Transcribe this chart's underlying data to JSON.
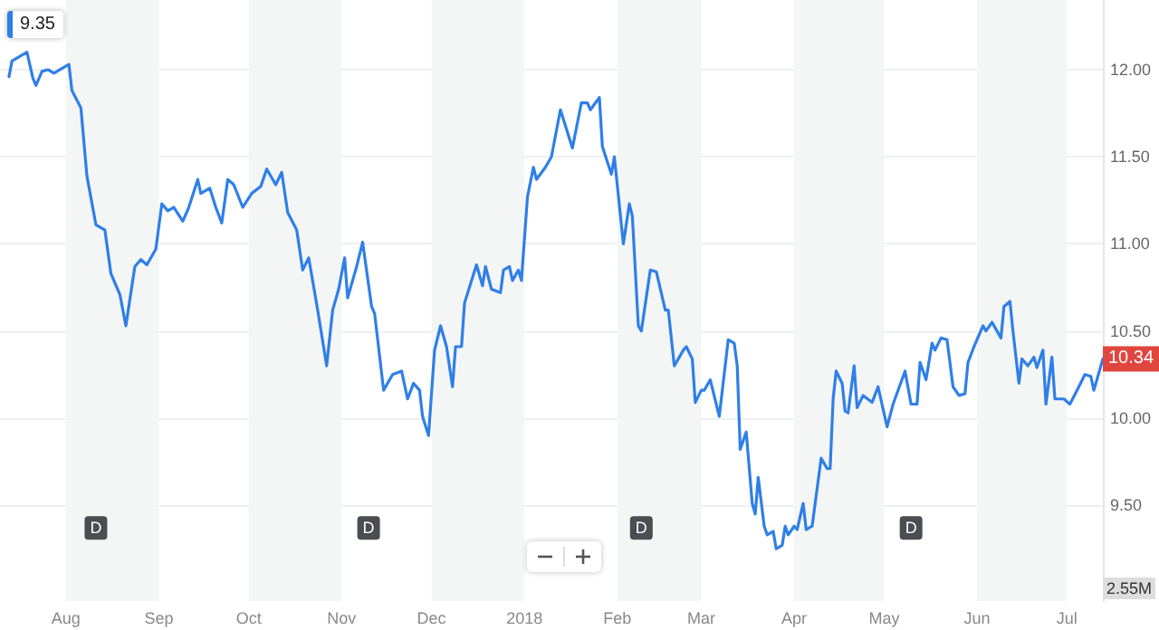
{
  "chart_data": {
    "type": "line",
    "x": [
      "2017-07-13",
      "2017-07-14",
      "2017-07-19",
      "2017-07-21",
      "2017-07-22",
      "2017-07-24",
      "2017-07-26",
      "2017-07-28",
      "2017-07-30",
      "2017-08-02",
      "2017-08-03",
      "2017-08-06",
      "2017-08-08",
      "2017-08-11",
      "2017-08-14",
      "2017-08-16",
      "2017-08-19",
      "2017-08-21",
      "2017-08-24",
      "2017-08-26",
      "2017-08-28",
      "2017-08-31",
      "2017-09-02",
      "2017-09-04",
      "2017-09-06",
      "2017-09-09",
      "2017-09-11",
      "2017-09-14",
      "2017-09-15",
      "2017-09-18",
      "2017-09-20",
      "2017-09-22",
      "2017-09-24",
      "2017-09-26",
      "2017-09-29",
      "2017-10-02",
      "2017-10-05",
      "2017-10-07",
      "2017-10-10",
      "2017-10-12",
      "2017-10-14",
      "2017-10-17",
      "2017-10-19",
      "2017-10-21",
      "2017-10-24",
      "2017-10-27",
      "2017-10-29",
      "2017-10-31",
      "2017-11-02",
      "2017-11-03",
      "2017-11-06",
      "2017-11-08",
      "2017-11-11",
      "2017-11-12",
      "2017-11-15",
      "2017-11-18",
      "2017-11-21",
      "2017-11-23",
      "2017-11-25",
      "2017-11-27",
      "2017-11-28",
      "2017-11-30",
      "2017-12-02",
      "2017-12-04",
      "2017-12-06",
      "2017-12-08",
      "2017-12-09",
      "2017-12-11",
      "2017-12-12",
      "2017-12-16",
      "2017-12-18",
      "2017-12-19",
      "2017-12-21",
      "2017-12-24",
      "2017-12-25",
      "2017-12-27",
      "2017-12-28",
      "2017-12-30",
      "2017-12-31",
      "2018-01-02",
      "2018-01-04",
      "2018-01-05",
      "2018-01-08",
      "2018-01-10",
      "2018-01-13",
      "2018-01-17",
      "2018-01-20",
      "2018-01-22",
      "2018-01-23",
      "2018-01-26",
      "2018-01-27",
      "2018-01-30",
      "2018-01-31",
      "2018-02-03",
      "2018-02-05",
      "2018-02-06",
      "2018-02-08",
      "2018-02-09",
      "2018-02-12",
      "2018-02-14",
      "2018-02-17",
      "2018-02-18",
      "2018-02-20",
      "2018-02-23",
      "2018-02-24",
      "2018-02-26",
      "2018-02-27",
      "2018-03-01",
      "2018-03-02",
      "2018-03-04",
      "2018-03-07",
      "2018-03-10",
      "2018-03-12",
      "2018-03-13",
      "2018-03-14",
      "2018-03-16",
      "2018-03-18",
      "2018-03-19",
      "2018-03-20",
      "2018-03-22",
      "2018-03-23",
      "2018-03-25",
      "2018-03-26",
      "2018-03-28",
      "2018-03-29",
      "2018-03-30",
      "2018-04-01",
      "2018-04-02",
      "2018-04-04",
      "2018-04-05",
      "2018-04-07",
      "2018-04-10",
      "2018-04-12",
      "2018-04-13",
      "2018-04-14",
      "2018-04-15",
      "2018-04-17",
      "2018-04-18",
      "2018-04-19",
      "2018-04-21",
      "2018-04-22",
      "2018-04-24",
      "2018-04-27",
      "2018-04-29",
      "2018-05-02",
      "2018-05-04",
      "2018-05-08",
      "2018-05-10",
      "2018-05-12",
      "2018-05-13",
      "2018-05-15",
      "2018-05-17",
      "2018-05-18",
      "2018-05-20",
      "2018-05-22",
      "2018-05-24",
      "2018-05-26",
      "2018-05-28",
      "2018-05-29",
      "2018-05-31",
      "2018-06-03",
      "2018-06-04",
      "2018-06-06",
      "2018-06-09",
      "2018-06-10",
      "2018-06-12",
      "2018-06-13",
      "2018-06-15",
      "2018-06-16",
      "2018-06-18",
      "2018-06-20",
      "2018-06-21",
      "2018-06-23",
      "2018-06-24",
      "2018-06-26",
      "2018-06-27",
      "2018-06-30",
      "2018-07-02",
      "2018-07-05",
      "2018-07-07",
      "2018-07-09",
      "2018-07-10",
      "2018-07-13"
    ],
    "series": [
      {
        "color": "#2f7fe8",
        "values": [
          11.96,
          12.05,
          12.1,
          11.95,
          11.91,
          11.99,
          12.0,
          11.98,
          12.0,
          12.03,
          11.88,
          11.78,
          11.39,
          11.11,
          11.08,
          10.83,
          10.71,
          10.53,
          10.87,
          10.91,
          10.88,
          10.97,
          11.23,
          11.19,
          11.21,
          11.13,
          11.21,
          11.37,
          11.29,
          11.32,
          11.21,
          11.12,
          11.37,
          11.34,
          11.21,
          11.29,
          11.33,
          11.43,
          11.34,
          11.41,
          11.18,
          11.08,
          10.85,
          10.92,
          10.62,
          10.3,
          10.62,
          10.74,
          10.92,
          10.69,
          10.87,
          11.01,
          10.64,
          10.6,
          10.16,
          10.25,
          10.27,
          10.11,
          10.2,
          10.16,
          10.01,
          9.9,
          10.39,
          10.53,
          10.41,
          10.18,
          10.41,
          10.41,
          10.66,
          10.88,
          10.76,
          10.87,
          10.74,
          10.72,
          10.85,
          10.87,
          10.79,
          10.85,
          10.79,
          11.27,
          11.44,
          11.37,
          11.44,
          11.5,
          11.77,
          11.55,
          11.81,
          11.81,
          11.77,
          11.84,
          11.56,
          11.4,
          11.5,
          11.0,
          11.23,
          11.16,
          10.53,
          10.5,
          10.85,
          10.84,
          10.62,
          10.62,
          10.3,
          10.39,
          10.41,
          10.34,
          10.09,
          10.16,
          10.16,
          10.22,
          10.01,
          10.45,
          10.43,
          10.3,
          9.82,
          9.92,
          9.51,
          9.45,
          9.66,
          9.38,
          9.33,
          9.35,
          9.25,
          9.27,
          9.38,
          9.33,
          9.38,
          9.36,
          9.51,
          9.36,
          9.38,
          9.77,
          9.71,
          9.71,
          10.11,
          10.27,
          10.2,
          10.04,
          10.03,
          10.3,
          10.06,
          10.13,
          10.09,
          10.18,
          9.95,
          10.08,
          10.27,
          10.08,
          10.08,
          10.32,
          10.22,
          10.43,
          10.39,
          10.46,
          10.45,
          10.18,
          10.13,
          10.14,
          10.32,
          10.41,
          10.53,
          10.5,
          10.55,
          10.46,
          10.64,
          10.67,
          10.5,
          10.2,
          10.34,
          10.3,
          10.35,
          10.29,
          10.39,
          10.08,
          10.35,
          10.11,
          10.11,
          10.08,
          10.18,
          10.25,
          10.24,
          10.16,
          10.34
        ]
      }
    ],
    "xlim": [
      "2017-07-10",
      "2018-07-13"
    ],
    "xticks": [
      {
        "value": "2017-08-01",
        "label": "Aug"
      },
      {
        "value": "2017-09-01",
        "label": "Sep"
      },
      {
        "value": "2017-10-01",
        "label": "Oct"
      },
      {
        "value": "2017-11-01",
        "label": "Nov"
      },
      {
        "value": "2017-12-01",
        "label": "Dec"
      },
      {
        "value": "2018-01-01",
        "label": "2018"
      },
      {
        "value": "2018-02-01",
        "label": "Feb"
      },
      {
        "value": "2018-03-01",
        "label": "Mar"
      },
      {
        "value": "2018-04-01",
        "label": "Apr"
      },
      {
        "value": "2018-05-01",
        "label": "May"
      },
      {
        "value": "2018-06-01",
        "label": "Jun"
      },
      {
        "value": "2018-07-01",
        "label": "Jul"
      }
    ],
    "ylim": [
      8.95,
      12.4
    ],
    "yticks": [
      {
        "value": 9.5,
        "label": "9.50"
      },
      {
        "value": 10,
        "label": "10.00"
      },
      {
        "value": 10.5,
        "label": "10.50"
      },
      {
        "value": 11,
        "label": "11.00"
      },
      {
        "value": 11.5,
        "label": "11.50"
      },
      {
        "value": 12,
        "label": "12.00"
      }
    ],
    "grid": "y",
    "bands": [
      {
        "axis": "x",
        "from": "2017-08-01",
        "to": "2017-09-01",
        "color": "#f4f6f6"
      },
      {
        "axis": "x",
        "from": "2017-10-01",
        "to": "2017-11-01",
        "color": "#f4f6f6"
      },
      {
        "axis": "x",
        "from": "2017-12-01",
        "to": "2018-01-01",
        "color": "#f4f6f6"
      },
      {
        "axis": "x",
        "from": "2018-02-01",
        "to": "2018-03-01",
        "color": "#f4f6f6"
      },
      {
        "axis": "x",
        "from": "2018-04-01",
        "to": "2018-05-01",
        "color": "#f4f6f6"
      },
      {
        "axis": "x",
        "from": "2018-06-01",
        "to": "2018-07-01",
        "color": "#f4f6f6"
      }
    ],
    "annotations": [
      "9.35",
      {
        "text": "10.34",
        "x": "2018-07-13",
        "y": 10.34
      },
      {
        "text": "D",
        "x": "2017-08-11",
        "y": 9.37
      },
      {
        "text": "D",
        "x": "2017-11-10",
        "y": 9.37
      },
      {
        "text": "D",
        "x": "2018-02-09",
        "y": 9.37
      },
      {
        "text": "D",
        "x": "2018-05-10",
        "y": 9.37
      },
      "2.55M"
    ]
  }
}
